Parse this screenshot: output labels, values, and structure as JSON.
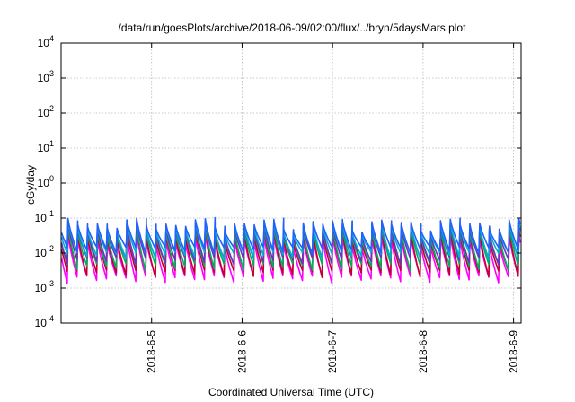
{
  "chart_data": {
    "type": "line",
    "title": "/data/run/goesPlots/archive/2018-06-09/02:00/flux/../bryn/5daysMars.plot",
    "xlabel": "Coordinated Universal Time (UTC)",
    "ylabel": "cGy/day",
    "yscale": "log",
    "ylim": [
      0.0001,
      10000
    ],
    "xlim": [
      "2018-06-04 00:00",
      "2018-06-09 02:00"
    ],
    "grid": true,
    "y_ticks": [
      {
        "base": "10",
        "exp": "4",
        "value": 10000
      },
      {
        "base": "10",
        "exp": "3",
        "value": 1000
      },
      {
        "base": "10",
        "exp": "2",
        "value": 100
      },
      {
        "base": "10",
        "exp": "1",
        "value": 10
      },
      {
        "base": "10",
        "exp": "0",
        "value": 1
      },
      {
        "base": "10",
        "exp": "-1",
        "value": 0.1
      },
      {
        "base": "10",
        "exp": "-2",
        "value": 0.01
      },
      {
        "base": "10",
        "exp": "-3",
        "value": 0.001
      },
      {
        "base": "10",
        "exp": "-4",
        "value": 0.0001
      }
    ],
    "x_ticks": [
      {
        "label": "2018-6-5",
        "time": "2018-06-05 00:00"
      },
      {
        "label": "2018-6-6",
        "time": "2018-06-06 00:00"
      },
      {
        "label": "2018-6-7",
        "time": "2018-06-07 00:00"
      },
      {
        "label": "2018-6-8",
        "time": "2018-06-08 00:00"
      },
      {
        "label": "2018-6-9",
        "time": "2018-06-09 00:00"
      }
    ],
    "cycle_hours": 2.6,
    "series": [
      {
        "color": "#ff00ff",
        "peak": 0.032,
        "trough": 0.0018
      },
      {
        "color": "#c00030",
        "peak": 0.045,
        "trough": 0.0026
      },
      {
        "color": "#00b060",
        "peak": 0.055,
        "trough": 0.004
      },
      {
        "color": "#7030c0",
        "peak": 0.065,
        "trough": 0.006
      },
      {
        "color": "#00b0d0",
        "peak": 0.072,
        "trough": 0.0085
      },
      {
        "color": "#2060ff",
        "peak": 0.085,
        "trough": 0.012
      }
    ]
  }
}
